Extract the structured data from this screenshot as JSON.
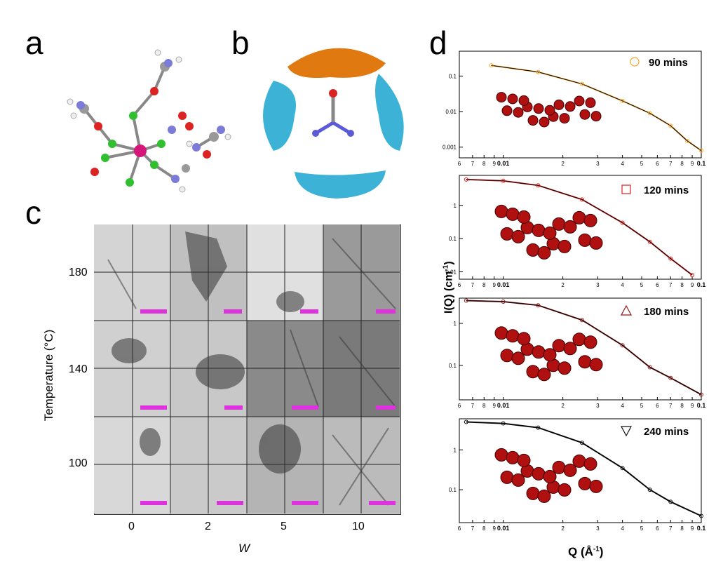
{
  "panels": {
    "a": "a",
    "b": "b",
    "c": "c",
    "d": "d"
  },
  "panel_c": {
    "ylabel": "Temperature (°C)",
    "xlabel": "W",
    "y_ticks": [
      "180",
      "140",
      "100"
    ],
    "x_ticks": [
      "0",
      "2",
      "5",
      "10"
    ],
    "scale_bar_color": "#dd33dd"
  },
  "panel_d": {
    "ylabel": "I(Q) (cm",
    "ylabel_sup": "-1",
    "ylabel_close": ")",
    "xlabel": "Q (Å",
    "xlabel_sup": "-1",
    "xlabel_close": ")",
    "x_tick_labels": [
      "6",
      "7",
      "8",
      "9",
      "0.01",
      "2",
      "3",
      "4",
      "5",
      "6",
      "7",
      "8",
      "9",
      "0.1"
    ]
  },
  "chart_data": [
    {
      "type": "scatter",
      "xscale": "log",
      "yscale": "log",
      "xlim": [
        0.006,
        0.1
      ],
      "ylim": [
        0.0005,
        0.5
      ],
      "series": [
        {
          "name": "90 mins",
          "marker": "circle",
          "color": "#f5a623",
          "x": [
            0.0087,
            0.015,
            0.025,
            0.04,
            0.055,
            0.07,
            0.085,
            0.1
          ],
          "y": [
            0.2,
            0.13,
            0.06,
            0.02,
            0.009,
            0.004,
            0.0015,
            0.0008
          ]
        }
      ],
      "y_tick_labels": [
        "0.1",
        "0.01",
        "0.001"
      ]
    },
    {
      "type": "scatter",
      "xscale": "log",
      "yscale": "log",
      "xlim": [
        0.006,
        0.1
      ],
      "ylim": [
        0.006,
        8
      ],
      "series": [
        {
          "name": "120 mins",
          "marker": "square",
          "color": "#e02020",
          "x": [
            0.0065,
            0.01,
            0.015,
            0.025,
            0.04,
            0.055,
            0.07,
            0.09
          ],
          "y": [
            6,
            5.5,
            4,
            1.5,
            0.3,
            0.08,
            0.025,
            0.008
          ]
        }
      ],
      "y_tick_labels": [
        "1",
        "0.1",
        "0.01"
      ]
    },
    {
      "type": "scatter",
      "xscale": "log",
      "yscale": "log",
      "xlim": [
        0.006,
        0.1
      ],
      "ylim": [
        0.015,
        4
      ],
      "series": [
        {
          "name": "180 mins",
          "marker": "triangle-up",
          "color": "#8b1a1a",
          "x": [
            0.0065,
            0.01,
            0.015,
            0.025,
            0.04,
            0.055,
            0.07,
            0.1
          ],
          "y": [
            3.5,
            3.3,
            2.7,
            1.2,
            0.3,
            0.09,
            0.05,
            0.02
          ]
        }
      ],
      "y_tick_labels": [
        "1",
        "0.1"
      ]
    },
    {
      "type": "scatter",
      "xscale": "log",
      "yscale": "log",
      "xlim": [
        0.006,
        0.1
      ],
      "ylim": [
        0.015,
        6
      ],
      "series": [
        {
          "name": "240 mins",
          "marker": "triangle-down",
          "color": "#111111",
          "x": [
            0.0065,
            0.01,
            0.015,
            0.025,
            0.04,
            0.055,
            0.07,
            0.1
          ],
          "y": [
            5,
            4.6,
            3.6,
            1.5,
            0.35,
            0.1,
            0.05,
            0.022
          ]
        }
      ],
      "y_tick_labels": [
        "1",
        "0.1"
      ]
    }
  ]
}
